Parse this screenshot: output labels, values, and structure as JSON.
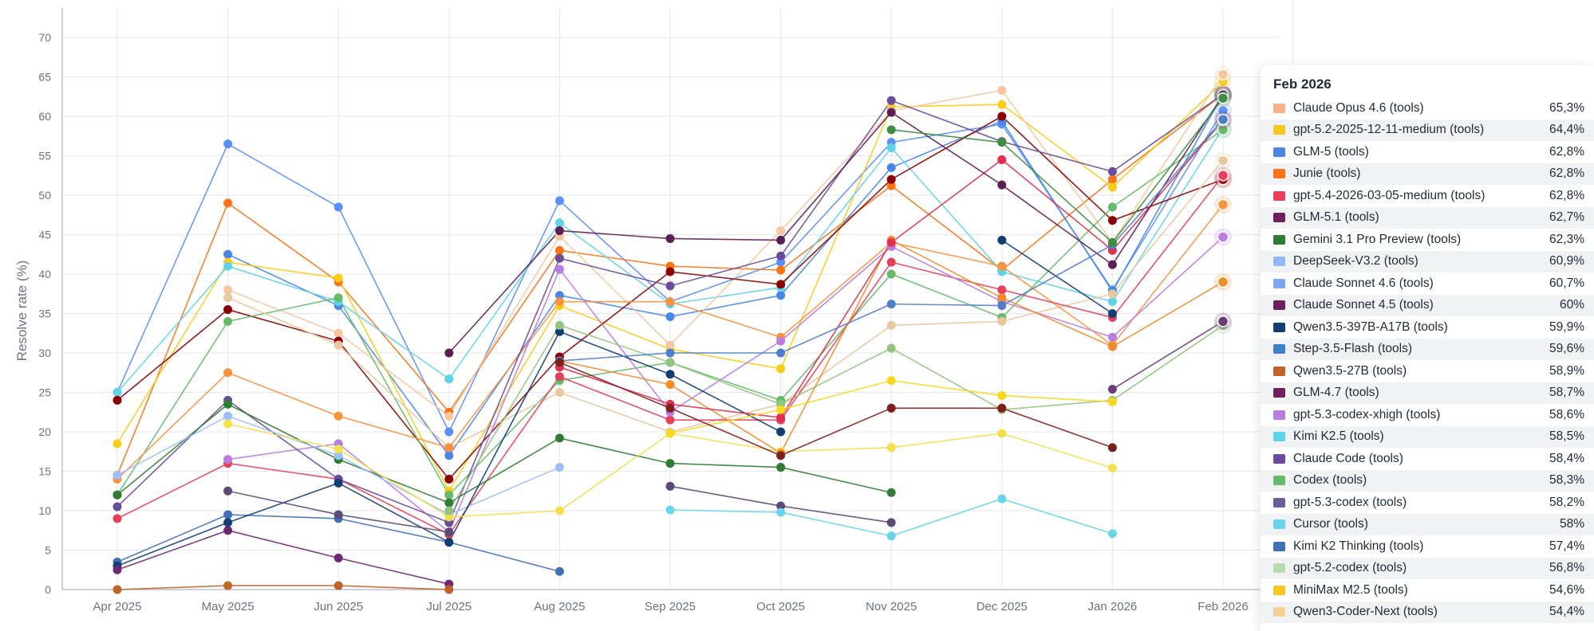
{
  "chart_data": {
    "type": "line",
    "ylabel": "Resolve rate (%)",
    "ylim": [
      0,
      70
    ],
    "yticks": [
      0,
      5,
      10,
      15,
      20,
      25,
      30,
      35,
      40,
      45,
      50,
      55,
      60,
      65,
      70
    ],
    "categories": [
      "Apr 2025",
      "May 2025",
      "Jun 2025",
      "Jul 2025",
      "Aug 2025",
      "Sep 2025",
      "Oct 2025",
      "Nov 2025",
      "Dec 2025",
      "Jan 2026",
      "Feb 2026"
    ],
    "grid": true,
    "series": [
      {
        "color": "#5b8ff9",
        "values": [
          25,
          56.5,
          48.5,
          20,
          49.3,
          36.5,
          41.5,
          56.7,
          59,
          38,
          60.7
        ]
      },
      {
        "color": "#f97316",
        "values": [
          14.5,
          49,
          39,
          22.5,
          43,
          41,
          40.5,
          51.2,
          40.5,
          52,
          62.8
        ]
      },
      {
        "color": "#4a86e8",
        "values": [
          null,
          42.5,
          36,
          17,
          37.3,
          34.6,
          37.3,
          53.5,
          59.4,
          37.8,
          62.8
        ]
      },
      {
        "color": "#facc15",
        "values": [
          18.5,
          41.5,
          39.5,
          12.5,
          36,
          30.5,
          28,
          61.2,
          61.5,
          51,
          64.4
        ]
      },
      {
        "color": "#5fd4e8",
        "values": [
          25,
          41,
          36.5,
          26.7,
          46.5,
          36.2,
          38.3,
          56,
          40.3,
          36.5,
          58.5
        ]
      },
      {
        "color": "#f5c6a0",
        "values": [
          null,
          38,
          32.5,
          22,
          44.8,
          31,
          45.5,
          60.7,
          63.3,
          44,
          65.3
        ]
      },
      {
        "color": "#8b0000",
        "values": [
          24,
          35.5,
          31.5,
          14,
          29.5,
          40.3,
          38.7,
          52,
          60,
          46.8,
          52
        ]
      },
      {
        "color": "#66bb6a",
        "values": [
          12,
          34,
          37,
          12,
          26.5,
          28.8,
          24,
          40,
          34.5,
          48.5,
          58.3
        ]
      },
      {
        "color": "#e8c89c",
        "values": [
          null,
          37,
          31,
          18,
          25,
          20,
          23.5,
          33.5,
          34,
          37.5,
          54.4
        ]
      },
      {
        "color": "#fb923c",
        "values": [
          14,
          27.5,
          22,
          18,
          36.5,
          36.5,
          32,
          44,
          41,
          31,
          48.8
        ]
      },
      {
        "color": "#e63f5a",
        "values": [
          9,
          16,
          14,
          7,
          27,
          21.5,
          21.5,
          41.5,
          38,
          34.5,
          52.5
        ]
      },
      {
        "color": "#b97de0",
        "values": [
          null,
          16.5,
          18.5,
          7.3,
          40.6,
          22.5,
          31.5,
          43.5,
          36.5,
          32,
          44.7
        ]
      },
      {
        "color": "#6b4c9a",
        "values": [
          10.5,
          24,
          14,
          8.5,
          42,
          38.5,
          42.3,
          62,
          56.8,
          53,
          62.8
        ]
      },
      {
        "color": "#2f7d32",
        "values": [
          12,
          23.5,
          16.5,
          11,
          19.2,
          16,
          15.5,
          12.3,
          null,
          null,
          null
        ]
      },
      {
        "color": "#9dbff7",
        "values": [
          14.5,
          22,
          17,
          9.5,
          15.5,
          null,
          null,
          null,
          null,
          null,
          null
        ]
      },
      {
        "color": "#3f6fb5",
        "values": [
          3.5,
          9.5,
          9,
          6,
          2.3,
          null,
          null,
          null,
          null,
          null,
          null
        ]
      },
      {
        "color": "#123f73",
        "values": [
          3,
          8.5,
          13.5,
          6,
          32.7,
          27.3,
          20,
          null,
          44.3,
          35,
          null
        ]
      },
      {
        "color": "#6d2872",
        "values": [
          2.5,
          7.5,
          4,
          0.7,
          null,
          null,
          null,
          null,
          null,
          null,
          null
        ]
      },
      {
        "color": "#c0632b",
        "values": [
          0,
          0.5,
          0.5,
          0,
          null,
          null,
          null,
          null,
          null,
          null,
          null
        ]
      },
      {
        "color": "#5b4a78",
        "values": [
          null,
          12.5,
          9.5,
          7.3,
          null,
          13.1,
          10.6,
          8.5,
          null,
          null,
          null
        ]
      },
      {
        "color": "#f4e04d",
        "values": [
          null,
          21,
          17.8,
          9.2,
          10,
          19.8,
          17.5,
          18,
          19.8,
          15.4,
          null
        ]
      },
      {
        "color": "#67d5ea",
        "values": [
          null,
          null,
          null,
          null,
          null,
          10.1,
          9.8,
          6.8,
          11.5,
          7.1,
          null
        ]
      },
      {
        "color": "#93c47d",
        "values": [
          null,
          null,
          null,
          10,
          33.5,
          28.8,
          23.5,
          30.6,
          22.8,
          24,
          33.5
        ]
      },
      {
        "color": "#f28b2a",
        "values": [
          null,
          null,
          null,
          null,
          29,
          26,
          17.3,
          44.3,
          37,
          30.8,
          39
        ]
      },
      {
        "color": "#e02f4f",
        "values": [
          null,
          null,
          null,
          null,
          28.2,
          23.5,
          21.8,
          44,
          54.5,
          43,
          59.5
        ]
      },
      {
        "color": "#5c1f55",
        "values": [
          null,
          null,
          null,
          30,
          45.5,
          44.5,
          44.3,
          60.5,
          51.3,
          41.2,
          62.7
        ]
      },
      {
        "color": "#f9d71c",
        "values": [
          null,
          null,
          null,
          null,
          null,
          19.8,
          22.8,
          26.5,
          24.6,
          23.8,
          null
        ]
      },
      {
        "color": "#4f7fc7",
        "values": [
          null,
          null,
          null,
          null,
          29,
          30,
          30,
          36.2,
          36,
          43.7,
          59.6
        ]
      },
      {
        "color": "#7d1f1f",
        "values": [
          null,
          null,
          null,
          null,
          28.8,
          23,
          17,
          23,
          23,
          18,
          null
        ]
      },
      {
        "color": "#3e8e41",
        "values": [
          null,
          null,
          null,
          null,
          null,
          null,
          null,
          58.3,
          56.7,
          44,
          62.3
        ]
      },
      {
        "color": "#6a3c7a",
        "values": [
          null,
          null,
          null,
          null,
          null,
          null,
          null,
          null,
          null,
          25.4,
          34
        ]
      }
    ],
    "tooltip": {
      "title": "Feb 2026",
      "entries": [
        {
          "name": "Claude Opus 4.6 (tools)",
          "value": "65,3%",
          "color": "#f5b38a"
        },
        {
          "name": "gpt-5.2-2025-12-11-medium (tools)",
          "value": "64,4%",
          "color": "#f4c81c"
        },
        {
          "name": "GLM-5 (tools)",
          "value": "62,8%",
          "color": "#4a86e8"
        },
        {
          "name": "Junie (tools)",
          "value": "62,8%",
          "color": "#f97316"
        },
        {
          "name": "gpt-5.4-2026-03-05-medium (tools)",
          "value": "62,8%",
          "color": "#e63f5a"
        },
        {
          "name": "GLM-5.1 (tools)",
          "value": "62,7%",
          "color": "#6d1f5e"
        },
        {
          "name": "Gemini 3.1 Pro Preview (tools)",
          "value": "62,3%",
          "color": "#2f7d32"
        },
        {
          "name": "DeepSeek-V3.2 (tools)",
          "value": "60,9%",
          "color": "#8fb8f5"
        },
        {
          "name": "Claude Sonnet 4.6 (tools)",
          "value": "60,7%",
          "color": "#7aa7f0"
        },
        {
          "name": "Claude Sonnet 4.5 (tools)",
          "value": "60%",
          "color": "#6d1f5e"
        },
        {
          "name": "Qwen3.5-397B-A17B (tools)",
          "value": "59,9%",
          "color": "#123f73"
        },
        {
          "name": "Step-3.5-Flash (tools)",
          "value": "59,6%",
          "color": "#3f7fc7"
        },
        {
          "name": "Qwen3.5-27B (tools)",
          "value": "58,9%",
          "color": "#c0632b"
        },
        {
          "name": "GLM-4.7 (tools)",
          "value": "58,7%",
          "color": "#6d1f5e"
        },
        {
          "name": "gpt-5.3-codex-xhigh (tools)",
          "value": "58,6%",
          "color": "#b97de0"
        },
        {
          "name": "Kimi K2.5 (tools)",
          "value": "58,5%",
          "color": "#5fd4e8"
        },
        {
          "name": "Claude Code (tools)",
          "value": "58,4%",
          "color": "#6b4c9a"
        },
        {
          "name": "Codex (tools)",
          "value": "58,3%",
          "color": "#66bb6a"
        },
        {
          "name": "gpt-5.3-codex (tools)",
          "value": "58,2%",
          "color": "#6b5c9a"
        },
        {
          "name": "Cursor (tools)",
          "value": "58%",
          "color": "#67d5ea"
        },
        {
          "name": "Kimi K2 Thinking (tools)",
          "value": "57,4%",
          "color": "#3f6fb5"
        },
        {
          "name": "gpt-5.2-codex (tools)",
          "value": "56,8%",
          "color": "#b8dcb0"
        },
        {
          "name": "MiniMax M2.5 (tools)",
          "value": "54,6%",
          "color": "#f4c81c"
        },
        {
          "name": "Qwen3-Coder-Next (tools)",
          "value": "54,4%",
          "color": "#f5d19a"
        }
      ]
    }
  }
}
